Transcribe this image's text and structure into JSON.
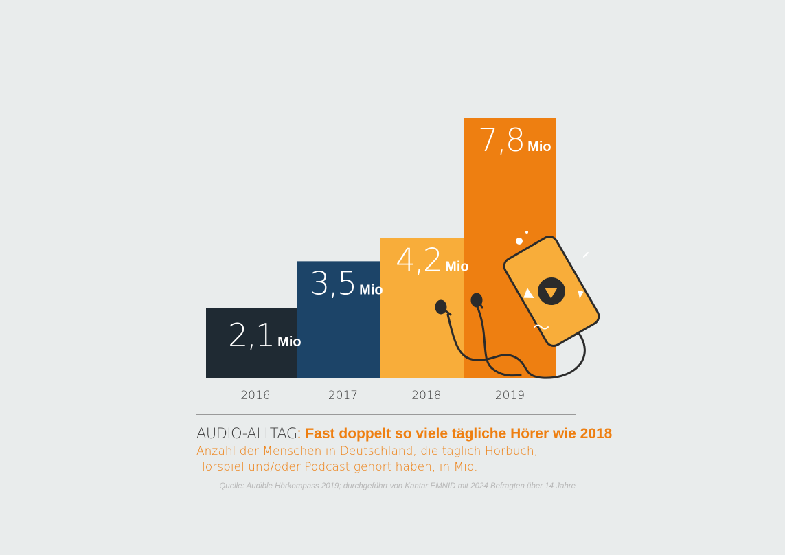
{
  "chart_data": {
    "type": "bar",
    "categories": [
      "2016",
      "2017",
      "2018",
      "2019"
    ],
    "values": [
      2.1,
      3.5,
      4.2,
      7.8
    ],
    "value_labels": [
      "2,1",
      "3,5",
      "4,2",
      "7,8"
    ],
    "unit": "Mio",
    "ylim": [
      0,
      7.8
    ],
    "grid": false,
    "legend": "none",
    "colors": [
      "#1f2a33",
      "#1c4468",
      "#f8ad3a",
      "#ee7f11"
    ]
  },
  "title": {
    "prefix": "AUDIO-ALLTAG",
    "colon": ":",
    "main": "Fast doppelt so viele tägliche Hörer wie 2018"
  },
  "subtitle": {
    "line1": "Anzahl der Menschen in Deutschland, die täglich Hörbuch,",
    "line2": "Hörspiel und/oder Podcast gehört haben, in Mio."
  },
  "source": "Quelle: Audible Hörkompass 2019; durchgeführt von Kantar EMNID mit 2024 Befragten über 14 Jahre",
  "illustration": {
    "icon": "smartphone-with-earphones-icon",
    "accent": "#f8ad3a",
    "ink": "#2b2b2b"
  }
}
